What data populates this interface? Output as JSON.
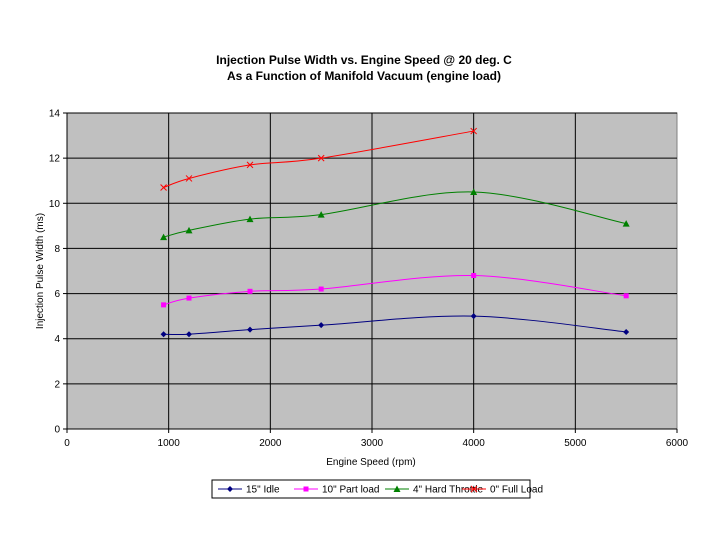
{
  "chart_data": {
    "type": "line",
    "title": [
      "Injection Pulse Width vs. Engine Speed @ 20 deg. C",
      "As a Function of Manifold Vacuum (engine load)"
    ],
    "xlabel": "Engine Speed (rpm)",
    "ylabel": "Injection Pulse Width (ms)",
    "xlim": [
      0,
      6000
    ],
    "ylim": [
      0,
      14
    ],
    "xticks": [
      0,
      1000,
      2000,
      3000,
      4000,
      5000,
      6000
    ],
    "yticks": [
      0,
      2,
      4,
      6,
      8,
      10,
      12,
      14
    ],
    "grid": "major",
    "plot_background": "#c0c0c0",
    "legend_position": "bottom",
    "series": [
      {
        "name": "15\" Idle",
        "color": "#000080",
        "marker": "diamond",
        "x": [
          950,
          1200,
          1800,
          2500,
          4000,
          5500
        ],
        "y": [
          4.2,
          4.2,
          4.4,
          4.6,
          5.0,
          4.3
        ]
      },
      {
        "name": "10\" Part load",
        "color": "#ff00ff",
        "marker": "square",
        "x": [
          950,
          1200,
          1800,
          2500,
          4000,
          5500
        ],
        "y": [
          5.5,
          5.8,
          6.1,
          6.2,
          6.8,
          5.9
        ]
      },
      {
        "name": "4\" Hard Throttle",
        "color": "#008000",
        "marker": "triangle",
        "x": [
          950,
          1200,
          1800,
          2500,
          4000,
          5500
        ],
        "y": [
          8.5,
          8.8,
          9.3,
          9.5,
          10.5,
          9.1
        ]
      },
      {
        "name": "0\" Full Load",
        "color": "#ff0000",
        "marker": "x",
        "x": [
          950,
          1200,
          1800,
          2500,
          4000
        ],
        "y": [
          10.7,
          11.1,
          11.7,
          12.0,
          13.2
        ]
      }
    ]
  }
}
